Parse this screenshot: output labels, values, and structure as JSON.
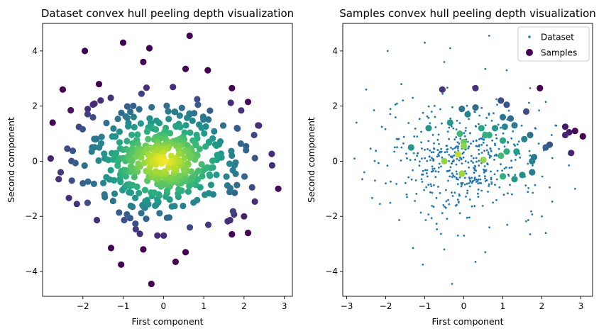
{
  "colors": {
    "dataset_marker": "#1f77b4",
    "viridis_low": "#440154",
    "viridis_high": "#fde725"
  },
  "chart_data": [
    {
      "type": "scatter",
      "title": "Dataset convex hull peeling depth visualization",
      "xlabel": "First component",
      "ylabel": "Second component",
      "xlim": [
        -3.0,
        3.2
      ],
      "ylim": [
        -4.9,
        5.0
      ],
      "xticks": [
        -2,
        -1,
        0,
        1,
        2,
        3
      ],
      "yticks": [
        -4,
        -2,
        0,
        2,
        4
      ],
      "colormap": "viridis",
      "color_encodes": "convex hull peeling depth",
      "outer_points": [
        [
          0.65,
          4.55
        ],
        [
          -1.0,
          4.3
        ],
        [
          -1.95,
          4.0
        ],
        [
          -0.35,
          4.1
        ],
        [
          -0.5,
          3.6
        ],
        [
          0.55,
          3.35
        ],
        [
          -2.5,
          2.6
        ],
        [
          -2.3,
          1.85
        ],
        [
          1.7,
          2.65
        ],
        [
          2.1,
          2.15
        ],
        [
          -2.75,
          1.4
        ],
        [
          2.25,
          0.95
        ],
        [
          2.35,
          1.3
        ],
        [
          -2.8,
          0.1
        ],
        [
          -2.55,
          -0.4
        ],
        [
          -2.6,
          -0.65
        ],
        [
          2.85,
          -1.0
        ],
        [
          -2.15,
          -1.55
        ],
        [
          2.2,
          -0.95
        ],
        [
          2.1,
          -2.6
        ],
        [
          1.7,
          -2.65
        ],
        [
          -0.3,
          -4.45
        ],
        [
          -1.05,
          -3.75
        ],
        [
          0.3,
          -3.65
        ],
        [
          0.55,
          -3.3
        ],
        [
          -1.3,
          -3.15
        ],
        [
          -0.5,
          -3.2
        ],
        [
          2.0,
          -2.0
        ],
        [
          -1.6,
          2.8
        ],
        [
          1.1,
          3.3
        ],
        [
          2.05,
          0.4
        ],
        [
          -2.0,
          -0.8
        ]
      ],
      "cloud": {
        "count": 480,
        "distribution": "2-D normal, mean 0, std 1",
        "colored_by_depth": true
      }
    },
    {
      "type": "scatter",
      "title": "Samples convex hull peeling depth visualization",
      "xlabel": "First component",
      "ylabel": "Second component",
      "xlim": [
        -3.1,
        3.3
      ],
      "ylim": [
        -4.9,
        5.0
      ],
      "xticks": [
        -3,
        -2,
        -1,
        0,
        1,
        2,
        3
      ],
      "yticks": [
        -4,
        -2,
        0,
        2,
        4
      ],
      "legend": {
        "position": "top-right",
        "entries": [
          {
            "label": "Dataset",
            "marker": "small-dot"
          },
          {
            "label": "Samples",
            "marker": "large-dot"
          }
        ]
      },
      "series": [
        {
          "name": "Dataset",
          "values": "same points as the left panel",
          "marker_size": "small"
        },
        {
          "name": "Samples",
          "values": [
            [
              -0.55,
              2.6
            ],
            [
              0.3,
              2.65
            ],
            [
              0.95,
              2.2
            ],
            [
              0.3,
              1.95
            ],
            [
              -0.05,
              1.9
            ],
            [
              1.1,
              2.05
            ],
            [
              1.2,
              1.55
            ],
            [
              1.6,
              1.8
            ],
            [
              1.95,
              2.65
            ],
            [
              2.6,
              1.25
            ],
            [
              2.7,
              1.05
            ],
            [
              2.85,
              1.1
            ],
            [
              3.05,
              0.9
            ],
            [
              2.6,
              0.95
            ],
            [
              2.2,
              0.6
            ],
            [
              2.1,
              0.5
            ],
            [
              1.75,
              0.0
            ],
            [
              1.8,
              0.15
            ],
            [
              2.75,
              0.3
            ],
            [
              1.7,
              0.95
            ],
            [
              1.75,
              -0.4
            ],
            [
              1.5,
              -0.5
            ],
            [
              1.0,
              1.6
            ],
            [
              1.3,
              1.3
            ],
            [
              0.8,
              1.2
            ],
            [
              0.55,
              0.95
            ],
            [
              0.65,
              0.95
            ],
            [
              0.0,
              0.7
            ],
            [
              0.0,
              0.55
            ],
            [
              -0.15,
              0.25
            ],
            [
              -0.1,
              1.0
            ],
            [
              -0.35,
              1.4
            ],
            [
              0.1,
              1.7
            ],
            [
              -0.9,
              1.2
            ],
            [
              -1.35,
              0.5
            ],
            [
              -0.5,
              0.0
            ],
            [
              0.5,
              0.05
            ],
            [
              1.1,
              0.35
            ],
            [
              1.35,
              0.35
            ],
            [
              1.0,
              0.75
            ],
            [
              0.95,
              0.2
            ],
            [
              1.0,
              -0.55
            ],
            [
              1.3,
              -0.65
            ],
            [
              -0.05,
              -0.45
            ],
            [
              1.05,
              1.25
            ],
            [
              1.55,
              0.8
            ],
            [
              0.45,
              1.2
            ]
          ],
          "marker_size": "large",
          "colored_by_depth": true
        }
      ]
    }
  ]
}
